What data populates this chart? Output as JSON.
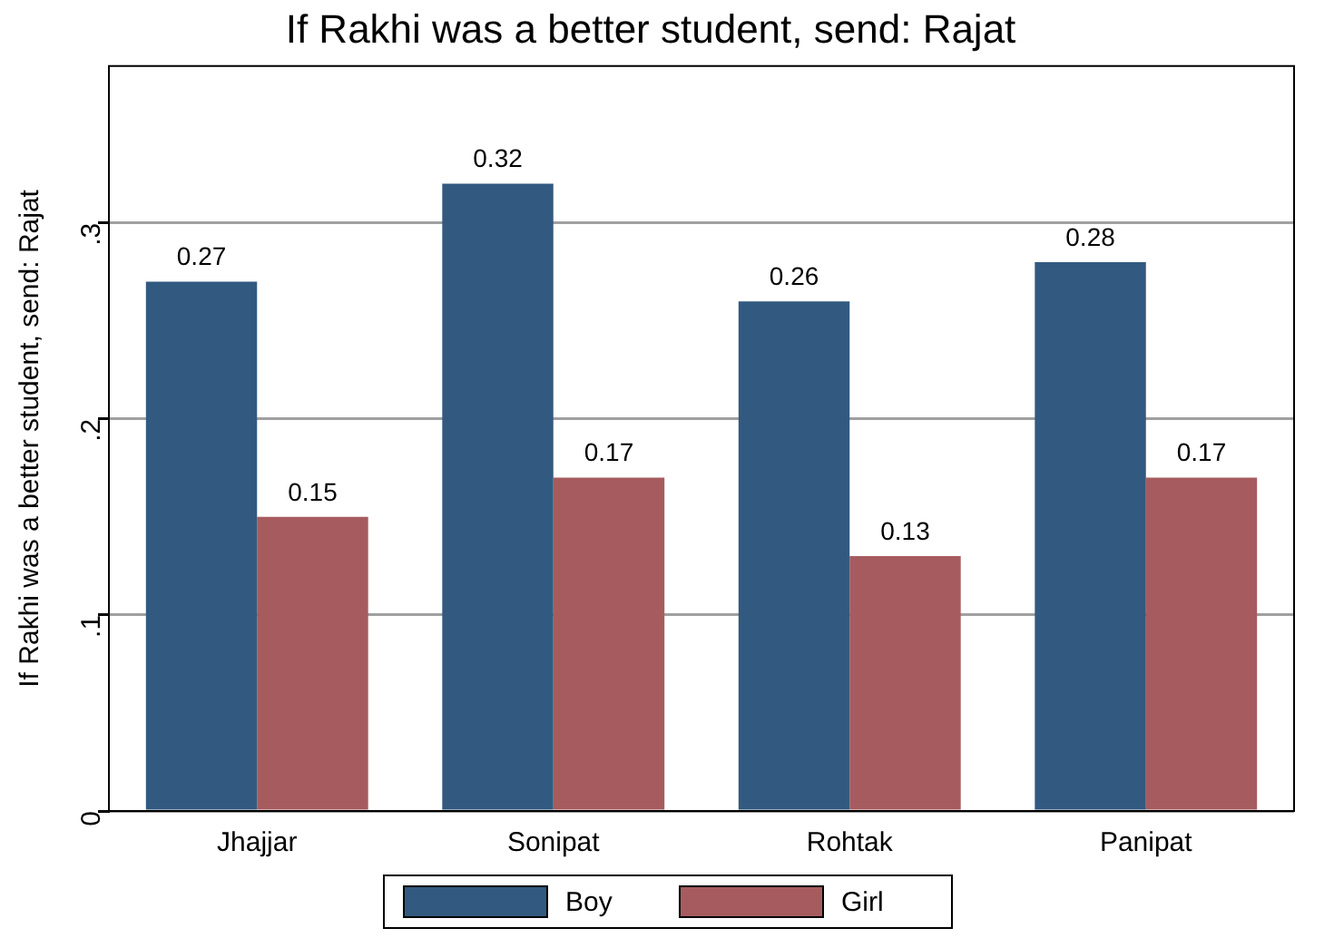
{
  "chart_data": {
    "type": "bar",
    "title": "If Rakhi was a better student, send: Rajat",
    "ylabel": "If Rakhi was a better student, send: Rajat",
    "categories": [
      "Jhajjar",
      "Sonipat",
      "Rohtak",
      "Panipat"
    ],
    "series": [
      {
        "name": "Boy",
        "color": "#325a80",
        "values": [
          0.27,
          0.32,
          0.26,
          0.28
        ]
      },
      {
        "name": "Girl",
        "color": "#a65c5f",
        "values": [
          0.15,
          0.17,
          0.13,
          0.17
        ]
      }
    ],
    "ylim": [
      0,
      0.38
    ],
    "yticks": [
      0,
      {
        "value": 0.1,
        "label": ".1"
      },
      {
        "value": 0.2,
        "label": ".2"
      },
      {
        "value": 0.3,
        "label": ".3"
      }
    ],
    "grid": "y",
    "legend": "bottom",
    "data_labels": true
  }
}
